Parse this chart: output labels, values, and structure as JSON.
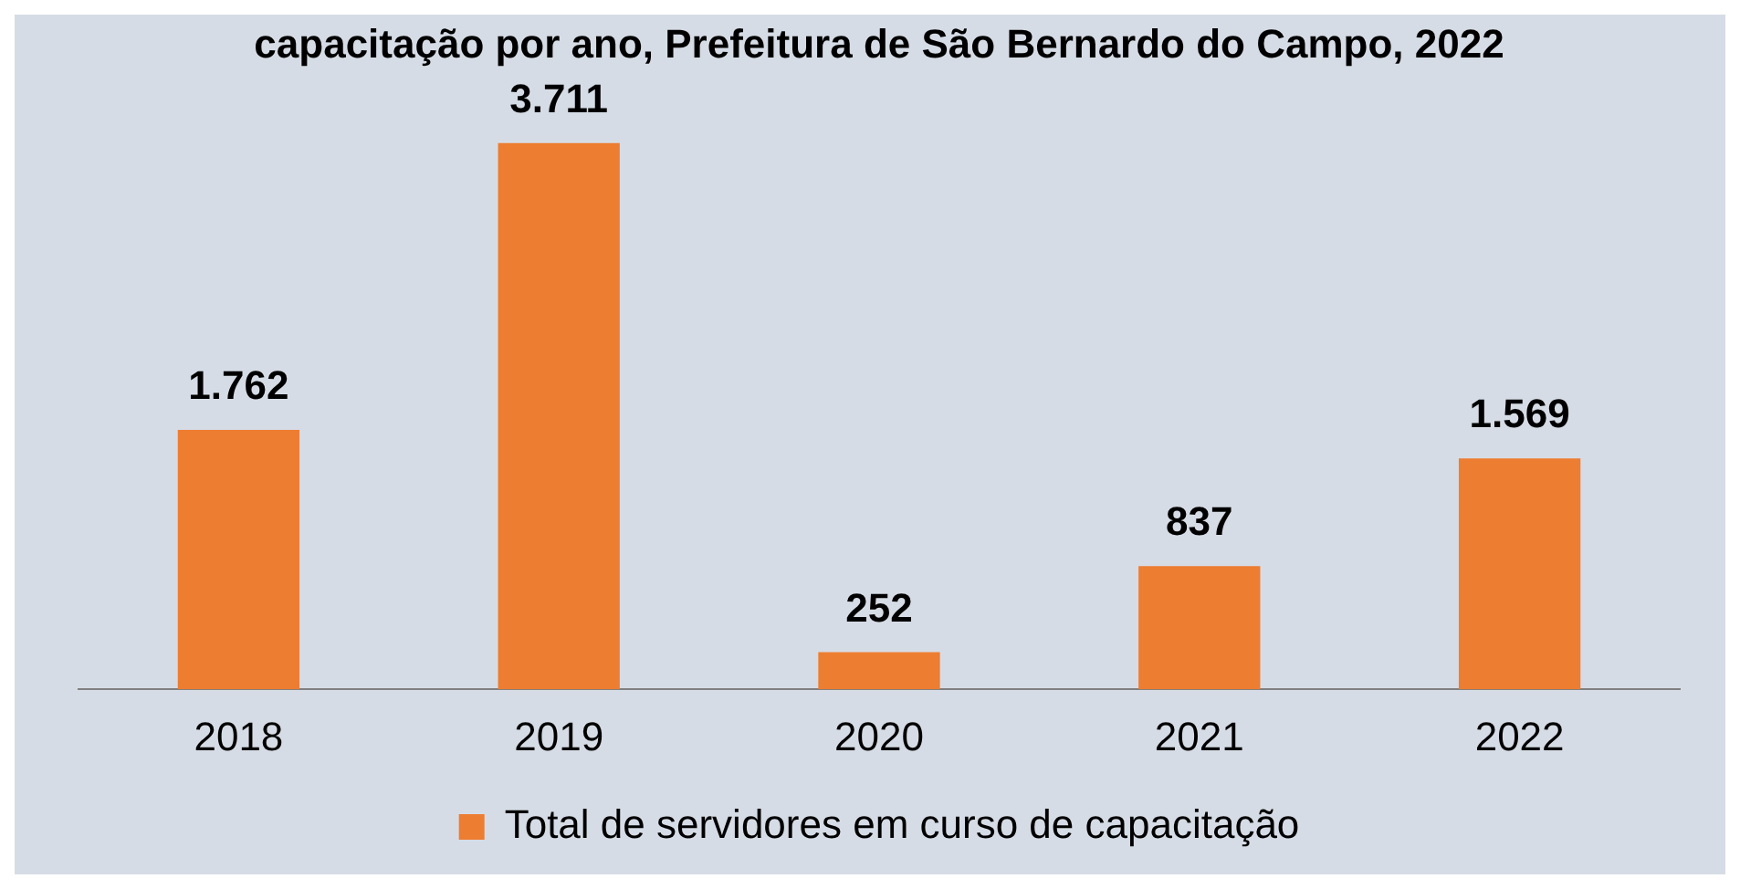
{
  "chart_data": {
    "type": "bar",
    "title": "capacitação por ano, Prefeitura de São Bernardo do Campo, 2022",
    "categories": [
      "2018",
      "2019",
      "2020",
      "2021",
      "2022"
    ],
    "series": [
      {
        "name": "Total de servidores em curso de capacitação",
        "color": "#ed7d31",
        "values": [
          1762,
          3711,
          252,
          837,
          1569
        ],
        "value_labels": [
          "1.762",
          "3.711",
          "252",
          "837",
          "1.569"
        ]
      }
    ],
    "grid": false,
    "legend": "bottom"
  }
}
